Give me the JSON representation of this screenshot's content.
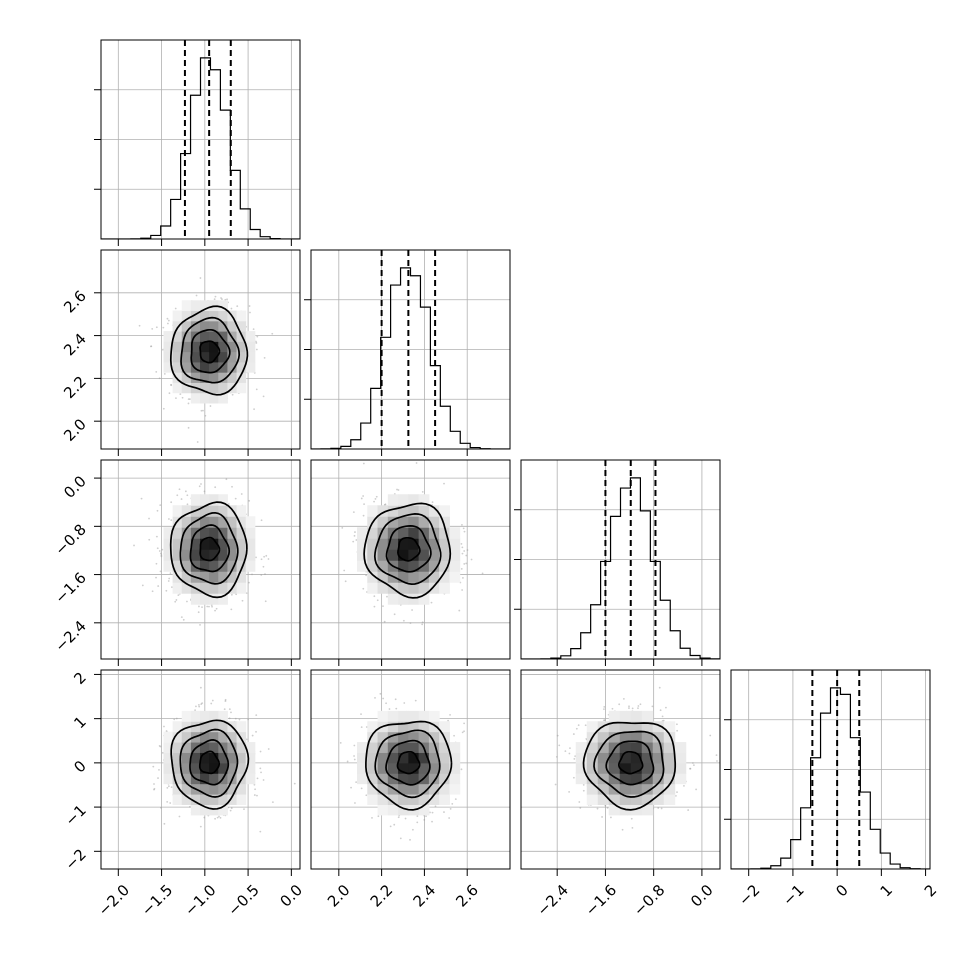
{
  "chart_data": {
    "type": "corner",
    "grid": true,
    "parameters": [
      {
        "index": 0,
        "range": [
          -2.2,
          0.1
        ],
        "ticks": [
          -2.0,
          -1.5,
          -1.0,
          -0.5,
          0.0
        ],
        "tick_labels": [
          "−2.0",
          "−1.5",
          "−1.0",
          "−0.5",
          "0.0"
        ],
        "mean": -0.95,
        "std": 0.22,
        "quantiles": [
          -1.23,
          -0.95,
          -0.7
        ],
        "hist": {
          "edges": [
            -2.2,
            0.1
          ],
          "peak_count": 1.0
        }
      },
      {
        "index": 1,
        "range": [
          1.87,
          2.8
        ],
        "ticks": [
          2.0,
          2.2,
          2.4,
          2.6
        ],
        "tick_labels": [
          "2.0",
          "2.2",
          "2.4",
          "2.6"
        ],
        "mean": 2.325,
        "std": 0.1,
        "quantiles": [
          2.2,
          2.325,
          2.45
        ],
        "hist": {
          "edges": [
            1.87,
            2.8
          ],
          "peak_count": 1.0
        }
      },
      {
        "index": 2,
        "range": [
          -3.0,
          0.3
        ],
        "ticks": [
          -2.4,
          -1.6,
          -0.8,
          0.0
        ],
        "tick_labels": [
          "−2.4",
          "−1.6",
          "−0.8",
          "0.0"
        ],
        "mean": -1.18,
        "std": 0.38,
        "quantiles": [
          -1.6,
          -1.18,
          -0.77
        ],
        "hist": {
          "edges": [
            -3.0,
            0.3
          ],
          "peak_count": 1.0
        }
      },
      {
        "index": 3,
        "range": [
          -2.4,
          2.1
        ],
        "ticks": [
          -2,
          -1,
          0,
          1,
          2
        ],
        "tick_labels": [
          "−2",
          "−1",
          "0",
          "1",
          "2"
        ],
        "mean": 0.0,
        "std": 0.49,
        "quantiles": [
          -0.56,
          0.0,
          0.5
        ],
        "hist": {
          "edges": [
            -2.4,
            2.1
          ],
          "peak_count": 1.0
        }
      }
    ],
    "histogram_ticks_relative": [
      0.25,
      0.5,
      0.75
    ],
    "contour_levels_sigma": [
      0.5,
      1.0,
      1.5,
      2.0
    ],
    "colors": {
      "samples": "#9e9e9e",
      "lines": "#000000",
      "grid": "#b0b0b0"
    }
  }
}
